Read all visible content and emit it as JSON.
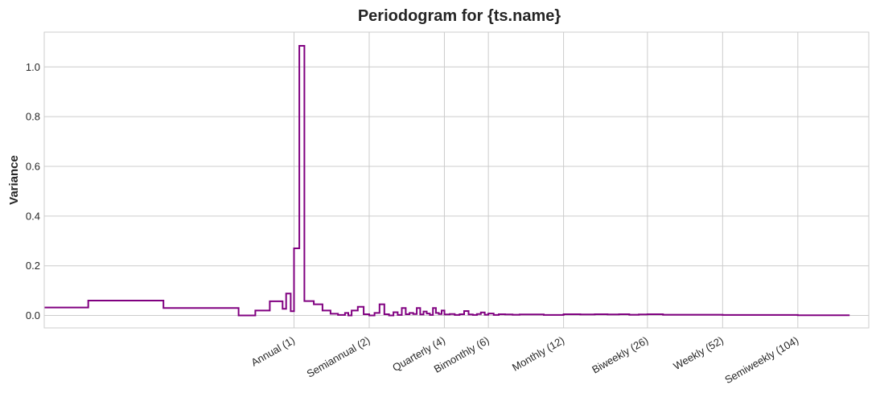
{
  "chart_data": {
    "type": "line",
    "step": true,
    "title": "Periodogram for {ts.name}",
    "xlabel": "",
    "ylabel": "Variance",
    "xscale": "log",
    "xlim": [
      0.1,
      200
    ],
    "ylim": [
      -0.05,
      1.14
    ],
    "grid": true,
    "color": "#800080",
    "yticks": [
      0.0,
      0.2,
      0.4,
      0.6,
      0.8,
      1.0
    ],
    "ytick_labels": [
      "0.0",
      "0.2",
      "0.4",
      "0.6",
      "0.8",
      "1.0"
    ],
    "xticks": [
      1,
      2,
      4,
      6,
      12,
      26,
      52,
      104
    ],
    "xtick_labels": [
      "Annual (1)",
      "Semiannual (2)",
      "Quarterly (4)",
      "Bimonthly (6)",
      "Monthly (12)",
      "Biweekly (26)",
      "Weekly (52)",
      "Semiweekly (104)"
    ],
    "series": [
      {
        "x": [
          0.1,
          0.15,
          0.3,
          0.6,
          0.7,
          0.8,
          0.9,
          0.93,
          0.97,
          1.0,
          1.05,
          1.1,
          1.2,
          1.3,
          1.4,
          1.5,
          1.6,
          1.65,
          1.7,
          1.8,
          1.9,
          2.0,
          2.1,
          2.2,
          2.3,
          2.4,
          2.5,
          2.6,
          2.7,
          2.8,
          2.9,
          3.0,
          3.1,
          3.2,
          3.3,
          3.4,
          3.5,
          3.6,
          3.7,
          3.8,
          3.9,
          4.0,
          4.2,
          4.4,
          4.6,
          4.8,
          5.0,
          5.2,
          5.4,
          5.6,
          5.8,
          6.0,
          6.3,
          6.6,
          7.0,
          7.5,
          8.0,
          9.0,
          10.0,
          12.0,
          14.0,
          16.0,
          18.0,
          20.0,
          22.0,
          24.0,
          26.0,
          30.0,
          35.0,
          40.0,
          52.0,
          70.0,
          104.0,
          150.0
        ],
        "y": [
          0.032,
          0.06,
          0.03,
          0.0,
          0.02,
          0.057,
          0.027,
          0.088,
          0.017,
          0.27,
          1.085,
          0.058,
          0.045,
          0.02,
          0.007,
          0.002,
          0.01,
          0.0,
          0.02,
          0.035,
          0.005,
          0.0,
          0.01,
          0.045,
          0.005,
          0.0,
          0.013,
          0.002,
          0.03,
          0.005,
          0.01,
          0.006,
          0.03,
          0.004,
          0.016,
          0.008,
          0.002,
          0.03,
          0.01,
          0.006,
          0.02,
          0.004,
          0.006,
          0.002,
          0.005,
          0.018,
          0.004,
          0.002,
          0.006,
          0.012,
          0.003,
          0.008,
          0.002,
          0.005,
          0.004,
          0.003,
          0.004,
          0.004,
          0.002,
          0.005,
          0.004,
          0.005,
          0.004,
          0.005,
          0.003,
          0.004,
          0.005,
          0.003,
          0.003,
          0.003,
          0.002,
          0.002,
          0.001,
          0.001
        ]
      }
    ]
  }
}
